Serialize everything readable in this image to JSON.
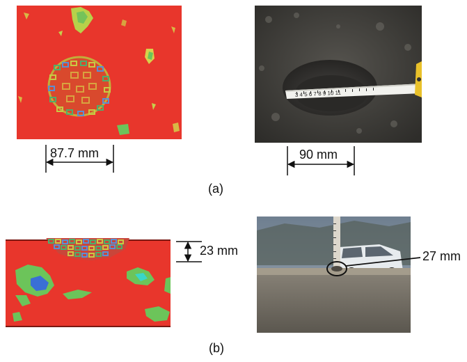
{
  "figure": {
    "part_a": {
      "caption": "(a)",
      "simulated_crater_width": "87.7 mm",
      "measured_crater_width": "90 mm",
      "ruler_text": "3 4 5 6 7 8 9 10 11"
    },
    "part_b": {
      "caption": "(b)",
      "simulated_crater_depth": "23 mm",
      "measured_crater_depth": "27 mm"
    }
  },
  "colors": {
    "sim_red": "#e8322a",
    "sim_green": "#6cc45a",
    "sim_blue": "#3a6fd6",
    "soil_dark": "#3b3b38",
    "sky_grey": "#7d8ea0"
  }
}
